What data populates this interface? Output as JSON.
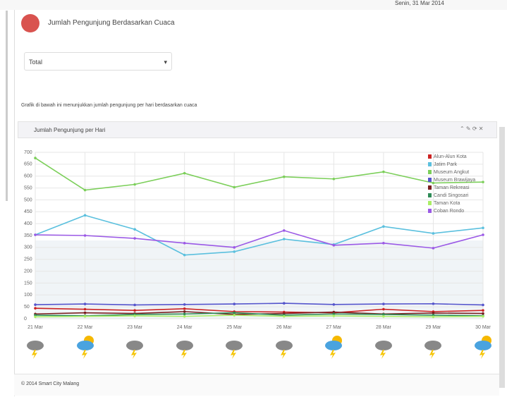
{
  "header": {
    "title": "Jumlah Pengunjung Berdasarkan Cuaca",
    "date": "Senin, 31 Mar 2014"
  },
  "filter": {
    "selected": "Total"
  },
  "description": "Grafik di bawah ini menunjukkan jumlah pengunjung per hari berdasarkan cuaca",
  "panel": {
    "title": "Jumlah Pengunjung per Hari"
  },
  "footer": "© 2014 Smart City Malang",
  "chart_data": {
    "type": "line",
    "categories": [
      "21 Mar",
      "22 Mar",
      "23 Mar",
      "24 Mar",
      "25 Mar",
      "26 Mar",
      "27 Mar",
      "28 Mar",
      "29 Mar",
      "30 Mar"
    ],
    "ylim": [
      0,
      700
    ],
    "yticks": [
      0,
      50,
      100,
      150,
      200,
      250,
      300,
      350,
      400,
      450,
      500,
      550,
      600,
      650,
      700
    ],
    "grid": true,
    "series": [
      {
        "name": "Alun-Alun Kota",
        "color": "#cc2222",
        "values": [
          44,
          40,
          35,
          42,
          30,
          28,
          25,
          40,
          30,
          35
        ]
      },
      {
        "name": "Jatim Park",
        "color": "#5bc0de",
        "values": [
          353,
          435,
          376,
          268,
          282,
          335,
          312,
          388,
          359,
          382
        ]
      },
      {
        "name": "Museum Angkut",
        "color": "#7ccf5a",
        "values": [
          676,
          541,
          565,
          612,
          553,
          597,
          588,
          618,
          571,
          575
        ]
      },
      {
        "name": "Museum Brawijaya",
        "color": "#5555cc",
        "values": [
          59,
          62,
          58,
          60,
          62,
          65,
          60,
          62,
          63,
          58
        ]
      },
      {
        "name": "Taman Rekreasi",
        "color": "#7a1f1f",
        "values": [
          20,
          25,
          22,
          30,
          18,
          22,
          28,
          20,
          24,
          22
        ]
      },
      {
        "name": "Candi Singosari",
        "color": "#2e8b57",
        "values": [
          15,
          12,
          18,
          20,
          25,
          15,
          20,
          18,
          15,
          12
        ]
      },
      {
        "name": "Taman Kota",
        "color": "#aaee66",
        "values": [
          8,
          10,
          12,
          10,
          15,
          10,
          12,
          10,
          8,
          10
        ]
      },
      {
        "name": "Coban Rondo",
        "color": "#9b59e6",
        "values": [
          353,
          350,
          338,
          318,
          300,
          371,
          309,
          318,
          297,
          353
        ]
      }
    ]
  }
}
